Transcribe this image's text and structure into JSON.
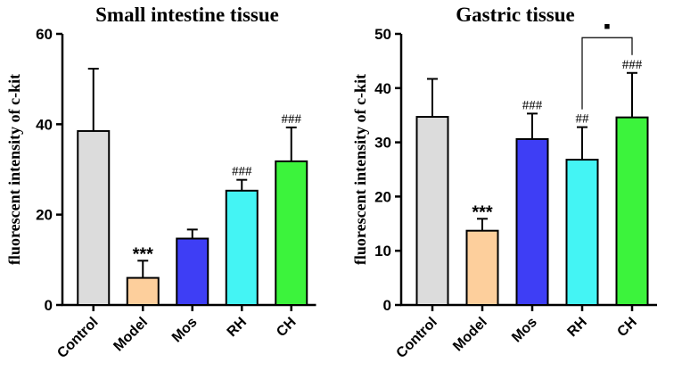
{
  "chart_data": [
    {
      "type": "bar",
      "title": "Small intestine tissue",
      "ylabel": "fluorescent intensity of c-kit",
      "xlabel": "",
      "ylim": [
        0,
        60
      ],
      "yticks": [
        0,
        20,
        40,
        60
      ],
      "categories": [
        "Control",
        "Model",
        "Mos",
        "RH",
        "CH"
      ],
      "values": [
        38.5,
        6,
        14.7,
        25.3,
        31.8
      ],
      "errors": [
        13.8,
        3.8,
        2,
        2.4,
        7.5
      ],
      "colors": [
        "#dcdcdc",
        "#fdcf9c",
        "#3e3ef5",
        "#44f4f4",
        "#3cf33c"
      ],
      "annotations": [
        "",
        "***",
        "",
        "###",
        "###"
      ],
      "comparisons": []
    },
    {
      "type": "bar",
      "title": "Gastric tissue",
      "ylabel": "fluorescent intensity of c-kit",
      "xlabel": "",
      "ylim": [
        0,
        50
      ],
      "yticks": [
        0,
        10,
        20,
        30,
        40,
        50
      ],
      "categories": [
        "Control",
        "Model",
        "Mos",
        "RH",
        "CH"
      ],
      "values": [
        34.7,
        13.7,
        30.6,
        26.8,
        34.6
      ],
      "errors": [
        7,
        2.2,
        4.7,
        6,
        8.2
      ],
      "colors": [
        "#dcdcdc",
        "#fdcf9c",
        "#3e3ef5",
        "#44f4f4",
        "#3cf33c"
      ],
      "annotations": [
        "",
        "***",
        "###",
        "##",
        "###"
      ],
      "comparisons": [
        {
          "from": "RH",
          "to": "CH",
          "y": 49.3,
          "label": "▪"
        }
      ]
    }
  ]
}
